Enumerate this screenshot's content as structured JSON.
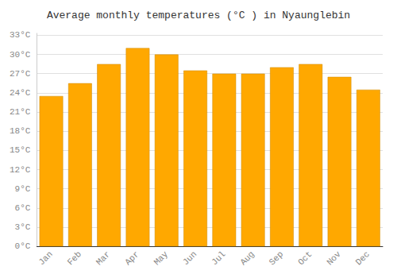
{
  "chart_data": {
    "type": "bar",
    "title": "Average monthly temperatures (°C ) in Nyaunglebin",
    "categories": [
      "Jan",
      "Feb",
      "Mar",
      "Apr",
      "May",
      "Jun",
      "Jul",
      "Aug",
      "Sep",
      "Oct",
      "Nov",
      "Dec"
    ],
    "values": [
      23.5,
      25.5,
      28.5,
      31.0,
      30.0,
      27.5,
      27.0,
      27.0,
      28.0,
      28.5,
      26.5,
      24.5
    ],
    "color": "#FFA800",
    "ylim": [
      0,
      33.3
    ],
    "yticks": [
      {
        "value": 0,
        "label": "0°C"
      },
      {
        "value": 3,
        "label": "3°C"
      },
      {
        "value": 6,
        "label": "6°C"
      },
      {
        "value": 9,
        "label": "9°C"
      },
      {
        "value": 12,
        "label": "12°C"
      },
      {
        "value": 15,
        "label": "15°C"
      },
      {
        "value": 18,
        "label": "18°C"
      },
      {
        "value": 21,
        "label": "21°C"
      },
      {
        "value": 24,
        "label": "24°C"
      },
      {
        "value": 27,
        "label": "27°C"
      },
      {
        "value": 30,
        "label": "30°C"
      },
      {
        "value": 33,
        "label": "33°C"
      }
    ],
    "grid": true
  }
}
